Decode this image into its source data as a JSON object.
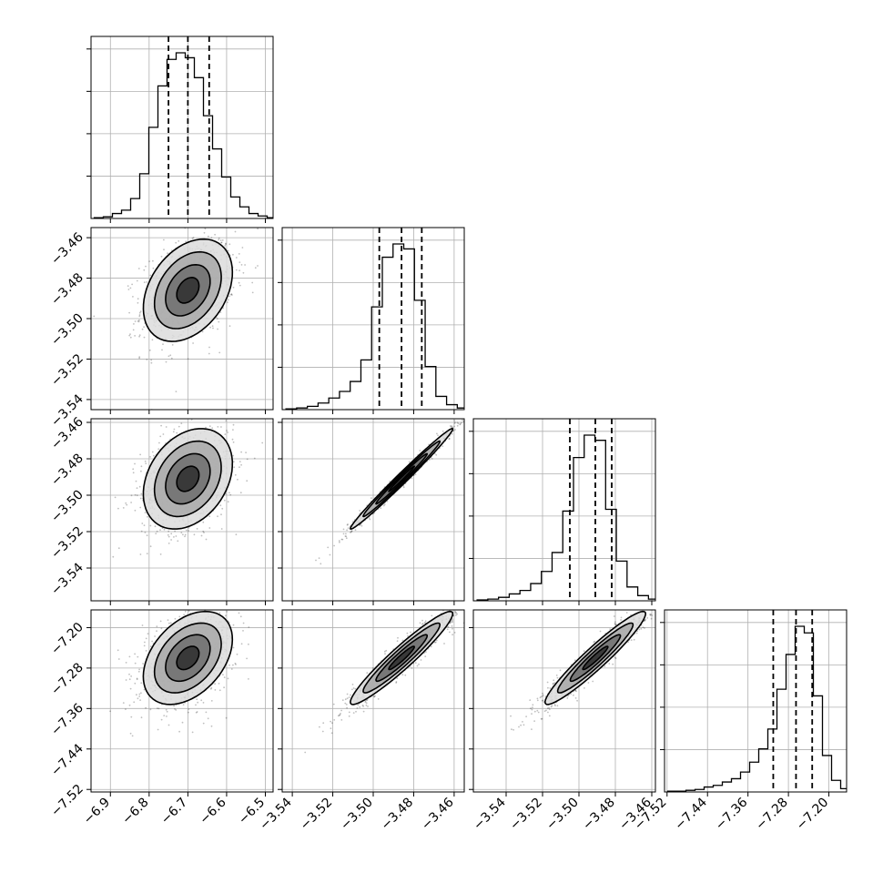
{
  "chart_data": {
    "type": "corner",
    "parameters": [
      {
        "name": "",
        "range": [
          -6.95,
          -6.48
        ],
        "mean": -6.7,
        "std": 0.05,
        "q": [
          -6.75,
          -6.7,
          -6.645
        ],
        "ticks": [
          -6.9,
          -6.8,
          -6.7,
          -6.6,
          -6.5
        ],
        "tick_labels": [
          "−6.9",
          "−6.8",
          "−6.7",
          "−6.6",
          "−6.5"
        ]
      },
      {
        "name": "",
        "range": [
          -3.545,
          -3.455
        ],
        "mean": -3.486,
        "std": 0.011,
        "q": [
          -3.497,
          -3.486,
          -3.476
        ],
        "ticks": [
          -3.54,
          -3.52,
          -3.5,
          -3.48,
          -3.46
        ],
        "tick_labels": [
          "−3.54",
          "−3.52",
          "−3.50",
          "−3.48",
          "−3.46"
        ]
      },
      {
        "name": "",
        "range": [
          -3.558,
          -3.458
        ],
        "mean": -3.491,
        "std": 0.012,
        "q": [
          -3.505,
          -3.491,
          -3.482
        ],
        "ticks": [
          -3.54,
          -3.52,
          -3.5,
          -3.48,
          -3.46
        ],
        "tick_labels": [
          "−3.54",
          "−3.52",
          "−3.50",
          "−3.48",
          "−3.46"
        ]
      },
      {
        "name": "",
        "range": [
          -7.525,
          -7.165
        ],
        "mean": -7.26,
        "std": 0.04,
        "q": [
          -7.31,
          -7.265,
          -7.233
        ],
        "ticks": [
          -7.52,
          -7.44,
          -7.36,
          -7.28,
          -7.2
        ],
        "tick_labels": [
          "−7.52",
          "−7.44",
          "−7.36",
          "−7.28",
          "−7.20"
        ]
      }
    ],
    "correlations": [
      [
        1,
        0.35,
        0.3,
        0.4
      ],
      [
        0.35,
        1,
        0.99,
        0.95
      ],
      [
        0.3,
        0.99,
        1,
        0.95
      ],
      [
        0.4,
        0.95,
        0.95,
        1
      ]
    ],
    "histograms": [
      [
        0.005,
        0.01,
        0.03,
        0.05,
        0.12,
        0.27,
        0.55,
        0.8,
        0.96,
        1.0,
        0.97,
        0.85,
        0.62,
        0.42,
        0.25,
        0.13,
        0.07,
        0.03,
        0.015,
        0.005
      ],
      [
        0.005,
        0.01,
        0.02,
        0.04,
        0.07,
        0.11,
        0.17,
        0.3,
        0.62,
        0.92,
        1.0,
        0.97,
        0.66,
        0.26,
        0.08,
        0.03,
        0.01
      ],
      [
        0.005,
        0.01,
        0.02,
        0.04,
        0.06,
        0.1,
        0.17,
        0.28,
        0.52,
        0.83,
        0.96,
        0.93,
        0.53,
        0.23,
        0.08,
        0.03,
        0.01
      ],
      [
        0.005,
        0.005,
        0.01,
        0.015,
        0.03,
        0.04,
        0.06,
        0.08,
        0.12,
        0.18,
        0.26,
        0.38,
        0.62,
        0.83,
        1.0,
        0.96,
        0.58,
        0.22,
        0.07,
        0.02
      ]
    ],
    "contour_levels_sigma": [
      0.5,
      1.0,
      1.5,
      2.0
    ],
    "grid": true,
    "legend": "none"
  }
}
